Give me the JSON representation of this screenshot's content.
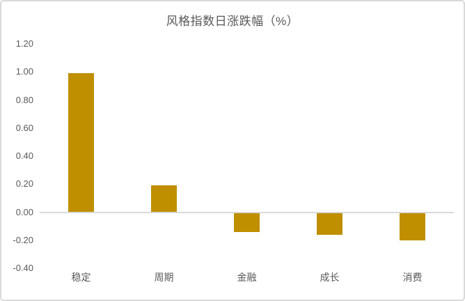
{
  "chart_data": {
    "type": "bar",
    "title": "风格指数日涨跌幅（%）",
    "categories": [
      "稳定",
      "周期",
      "金融",
      "成长",
      "消费"
    ],
    "values": [
      0.99,
      0.19,
      -0.14,
      -0.16,
      -0.2
    ],
    "ylim": [
      -0.4,
      1.2
    ],
    "ytick_step": 0.2,
    "ytick_labels": [
      "1.20",
      "1.00",
      "0.80",
      "0.60",
      "0.40",
      "0.20",
      "0.00",
      "-0.20",
      "-0.40"
    ],
    "grid": false,
    "legend_position": "none",
    "data_labels": false,
    "colors": {
      "bar": "#BF8F00",
      "text": "#595959",
      "axis_line": "#D9D9D9",
      "chart_border": "#D9D9D9",
      "background": "#FFFFFF"
    }
  }
}
